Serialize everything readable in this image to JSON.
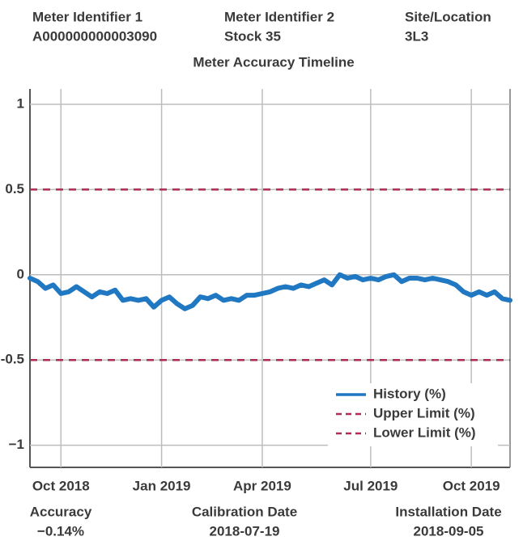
{
  "header": [
    {
      "label": "Meter Identifier 1",
      "value": "A000000000003090"
    },
    {
      "label": "Meter Identifier 2",
      "value": "Stock 35"
    },
    {
      "label": "Site/Location",
      "value": "3L3"
    }
  ],
  "chart_data": {
    "type": "line",
    "title": "Meter Accuracy Timeline",
    "categories": [
      null,
      null,
      null,
      null,
      "Oct 2018",
      null,
      null,
      null,
      null,
      null,
      null,
      null,
      null,
      null,
      null,
      null,
      null,
      "Jan 2019",
      null,
      null,
      null,
      null,
      null,
      null,
      null,
      null,
      null,
      null,
      null,
      null,
      "Apr 2019",
      null,
      null,
      null,
      null,
      null,
      null,
      null,
      null,
      null,
      null,
      null,
      null,
      null,
      "Jul 2019",
      null,
      null,
      null,
      null,
      null,
      null,
      null,
      null,
      null,
      null,
      null,
      null,
      "Oct 2019",
      null,
      null,
      null,
      null,
      null
    ],
    "series": [
      {
        "name": "History (%)",
        "color": "#1f78c1",
        "values": [
          -0.02,
          -0.04,
          -0.08,
          -0.06,
          -0.11,
          -0.1,
          -0.07,
          -0.1,
          -0.13,
          -0.1,
          -0.11,
          -0.09,
          -0.15,
          -0.14,
          -0.15,
          -0.14,
          -0.19,
          -0.15,
          -0.13,
          -0.17,
          -0.2,
          -0.18,
          -0.13,
          -0.14,
          -0.12,
          -0.15,
          -0.14,
          -0.15,
          -0.12,
          -0.12,
          -0.11,
          -0.1,
          -0.08,
          -0.07,
          -0.08,
          -0.06,
          -0.07,
          -0.05,
          -0.03,
          -0.06,
          0.0,
          -0.02,
          -0.01,
          -0.03,
          -0.02,
          -0.03,
          -0.01,
          0.0,
          -0.04,
          -0.02,
          -0.02,
          -0.03,
          -0.02,
          -0.03,
          -0.04,
          -0.06,
          -0.1,
          -0.12,
          -0.1,
          -0.12,
          -0.1,
          -0.14,
          -0.15
        ]
      }
    ],
    "limits": [
      {
        "name": "Upper Limit (%)",
        "value": 0.5,
        "color": "#b02a52"
      },
      {
        "name": "Lower Limit (%)",
        "value": -0.5,
        "color": "#b02a52"
      }
    ],
    "ylim": [
      -1.13,
      1.09
    ],
    "yticks": [
      1,
      0.5,
      0,
      -0.5,
      {
        "value": -1,
        "label": "−1"
      }
    ],
    "grid": true,
    "legend": "lower right"
  },
  "footer": [
    {
      "label": "Accuracy",
      "value": "−0.14%"
    },
    {
      "label": "Calibration Date",
      "value": "2018-07-19"
    },
    {
      "label": "Installation Date",
      "value": "2018-09-05"
    }
  ]
}
